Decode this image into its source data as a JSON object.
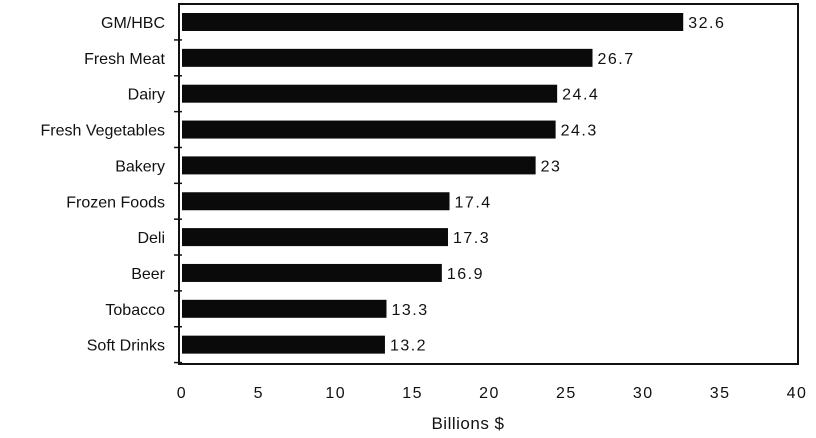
{
  "chart_data": {
    "type": "bar",
    "orientation": "horizontal",
    "title": "",
    "xlabel": "Billions  $",
    "ylabel": "",
    "xlim": [
      0,
      40
    ],
    "x_ticks": [
      0,
      5,
      10,
      15,
      20,
      25,
      30,
      35,
      40
    ],
    "grid": false,
    "bar_color": "#0a0a0a",
    "categories": [
      "GM/HBC",
      "Fresh Meat",
      "Dairy",
      "Fresh Vegetables",
      "Bakery",
      "Frozen Foods",
      "Deli",
      "Beer",
      "Tobacco",
      "Soft Drinks"
    ],
    "values": [
      32.6,
      26.7,
      24.4,
      24.3,
      23,
      17.4,
      17.3,
      16.9,
      13.3,
      13.2
    ],
    "value_labels": [
      "32.6",
      "26.7",
      "24.4",
      "24.3",
      "23",
      "17.4",
      "17.3",
      "16.9",
      "13.3",
      "13.2"
    ]
  }
}
